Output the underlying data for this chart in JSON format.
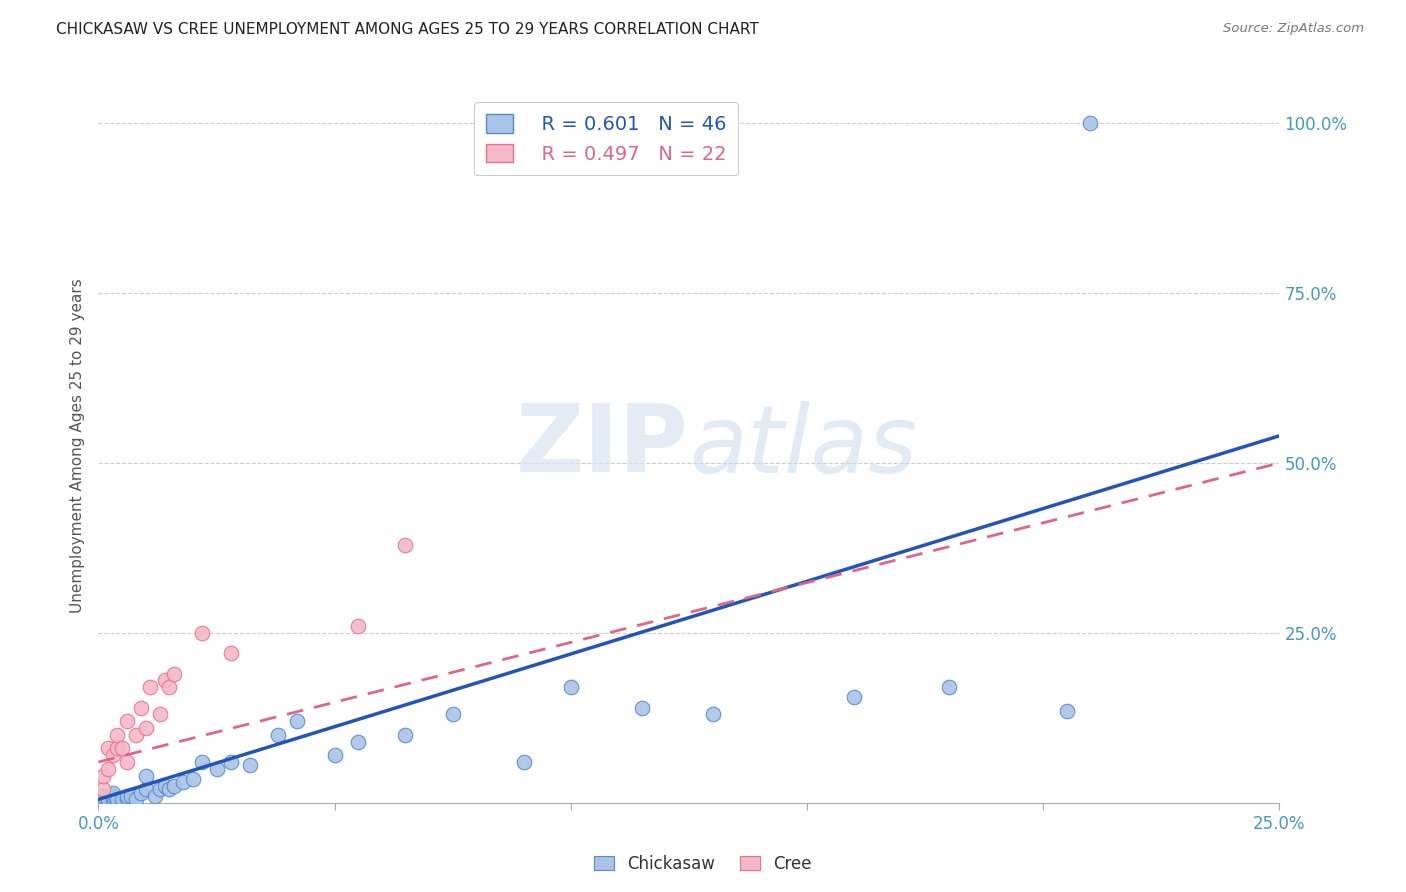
{
  "title": "CHICKASAW VS CREE UNEMPLOYMENT AMONG AGES 25 TO 29 YEARS CORRELATION CHART",
  "source": "Source: ZipAtlas.com",
  "ylabel": "Unemployment Among Ages 25 to 29 years",
  "xlim": [
    0.0,
    0.25
  ],
  "ylim": [
    0.0,
    1.05
  ],
  "xticks": [
    0.0,
    0.05,
    0.1,
    0.15,
    0.2,
    0.25
  ],
  "xticklabels": [
    "0.0%",
    "",
    "",
    "",
    "",
    "25.0%"
  ],
  "yticks": [
    0.0,
    0.25,
    0.5,
    0.75,
    1.0
  ],
  "yticklabels": [
    "",
    "25.0%",
    "50.0%",
    "75.0%",
    "100.0%"
  ],
  "chickasaw_color": "#aac4e8",
  "cree_color": "#f5b8c8",
  "chickasaw_edge_color": "#5588cc",
  "cree_edge_color": "#e87090",
  "chickasaw_line_color": "#2255bb",
  "cree_line_color": "#dd6688",
  "legend_r_chickasaw": "R = 0.601",
  "legend_n_chickasaw": "N = 46",
  "legend_r_cree": "R = 0.497",
  "legend_n_cree": "N = 22",
  "watermark_zip": "ZIP",
  "watermark_atlas": "atlas",
  "chickasaw_x": [
    0.001,
    0.001,
    0.001,
    0.001,
    0.001,
    0.002,
    0.002,
    0.003,
    0.003,
    0.003,
    0.003,
    0.004,
    0.005,
    0.005,
    0.006,
    0.006,
    0.007,
    0.008,
    0.009,
    0.01,
    0.01,
    0.012,
    0.013,
    0.014,
    0.015,
    0.016,
    0.018,
    0.02,
    0.022,
    0.025,
    0.028,
    0.032,
    0.038,
    0.042,
    0.05,
    0.055,
    0.065,
    0.075,
    0.09,
    0.1,
    0.115,
    0.13,
    0.16,
    0.18,
    0.205,
    0.21
  ],
  "chickasaw_y": [
    0.0,
    0.0,
    0.005,
    0.005,
    0.01,
    0.0,
    0.005,
    0.0,
    0.005,
    0.01,
    0.015,
    0.005,
    0.0,
    0.005,
    0.005,
    0.01,
    0.01,
    0.005,
    0.015,
    0.02,
    0.04,
    0.01,
    0.02,
    0.025,
    0.02,
    0.025,
    0.03,
    0.035,
    0.06,
    0.05,
    0.06,
    0.055,
    0.1,
    0.12,
    0.07,
    0.09,
    0.1,
    0.13,
    0.06,
    0.17,
    0.14,
    0.13,
    0.155,
    0.17,
    0.135,
    1.0
  ],
  "cree_x": [
    0.001,
    0.001,
    0.002,
    0.002,
    0.003,
    0.004,
    0.004,
    0.005,
    0.006,
    0.006,
    0.008,
    0.009,
    0.01,
    0.011,
    0.013,
    0.014,
    0.015,
    0.016,
    0.022,
    0.028,
    0.055,
    0.065
  ],
  "cree_y": [
    0.02,
    0.04,
    0.05,
    0.08,
    0.07,
    0.08,
    0.1,
    0.08,
    0.06,
    0.12,
    0.1,
    0.14,
    0.11,
    0.17,
    0.13,
    0.18,
    0.17,
    0.19,
    0.25,
    0.22,
    0.26,
    0.38
  ],
  "chickasaw_trend": [
    0.005,
    0.54
  ],
  "cree_trend": [
    0.06,
    0.5
  ],
  "grid_color": "#cccccc",
  "tick_color": "#aaaaaa",
  "label_color": "#4499bb"
}
